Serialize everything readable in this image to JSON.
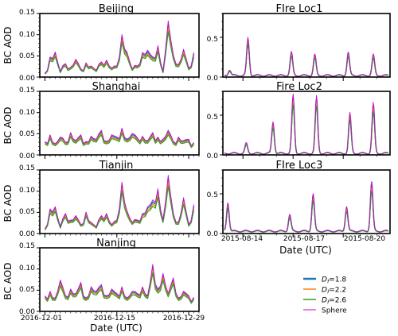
{
  "figure": {
    "left_date_labels": [
      "2016-12-01",
      "2016-12-15",
      "2016-12-29"
    ],
    "right_date_labels": [
      "2015-08-14",
      "2015-08-17",
      "2015-08-20"
    ],
    "left_xlabel": "Date (UTC)",
    "right_xlabel": "Date (UTC)",
    "ylabel": "BC AOD"
  },
  "legend": {
    "position": "bottom-right",
    "entries": [
      {
        "label_main": "D",
        "label_sub": "f",
        "label_value": "=1.8",
        "color": "#1f77b4",
        "bold": true
      },
      {
        "label_main": "D",
        "label_sub": "f",
        "label_value": "=2.2",
        "color": "#ff7f0e",
        "bold": false
      },
      {
        "label_main": "D",
        "label_sub": "f",
        "label_value": "=2.6",
        "color": "#2ca02c",
        "bold": false
      },
      {
        "label_main": "Sphere",
        "label_sub": "",
        "label_value": "",
        "color": "#d400d4",
        "bold": false
      }
    ]
  },
  "chart_data": [
    {
      "type": "line",
      "title": "Beijing",
      "ylabel": "BC AOD",
      "xlabel": "",
      "ylim": [
        0,
        0.15
      ],
      "yticks": [
        0.0,
        0.05,
        0.1,
        0.15
      ],
      "ytick_labels": [
        "0.00",
        "0.05",
        "0.10",
        "0.15"
      ],
      "xlim_days": [
        -1,
        30
      ],
      "xticks_days": [
        0,
        14,
        28
      ],
      "xtick_labels": [
        "",
        "",
        ""
      ],
      "series": [
        {
          "name": "Df=1.8",
          "color": "#1f77b4"
        },
        {
          "name": "Df=2.2",
          "color": "#ff7f0e"
        },
        {
          "name": "Df=2.6",
          "color": "#2ca02c"
        },
        {
          "name": "Sphere",
          "color": "#d400d4"
        }
      ],
      "x_days": [
        0,
        1,
        2,
        3,
        4,
        5,
        6,
        7,
        8,
        9,
        10,
        11,
        12,
        13,
        14,
        15,
        16,
        17,
        18,
        19,
        20,
        21,
        22,
        23,
        24,
        25,
        26,
        27,
        28,
        29
      ],
      "values": [
        0.008,
        0.045,
        0.056,
        0.012,
        0.03,
        0.022,
        0.04,
        0.018,
        0.032,
        0.025,
        0.015,
        0.034,
        0.038,
        0.02,
        0.025,
        0.095,
        0.055,
        0.018,
        0.025,
        0.055,
        0.06,
        0.045,
        0.07,
        0.012,
        0.125,
        0.05,
        0.028,
        0.062,
        0.02,
        0.055
      ]
    },
    {
      "type": "line",
      "title": "Shanghai",
      "ylabel": "BC AOD",
      "xlabel": "",
      "ylim": [
        0,
        0.15
      ],
      "yticks": [
        0.0,
        0.05,
        0.1,
        0.15
      ],
      "ytick_labels": [
        "0.00",
        "0.05",
        "0.10",
        "0.15"
      ],
      "xlim_days": [
        -1,
        30
      ],
      "xticks_days": [
        0,
        14,
        28
      ],
      "xtick_labels": [
        "",
        "",
        ""
      ],
      "series": [
        {
          "name": "Df=1.8",
          "color": "#1f77b4"
        },
        {
          "name": "Df=2.2",
          "color": "#ff7f0e"
        },
        {
          "name": "Df=2.6",
          "color": "#2ca02c"
        },
        {
          "name": "Sphere",
          "color": "#d400d4"
        }
      ],
      "x_days": [
        0,
        1,
        2,
        3,
        4,
        5,
        6,
        7,
        8,
        9,
        10,
        11,
        12,
        13,
        14,
        15,
        16,
        17,
        18,
        19,
        20,
        21,
        22,
        23,
        24,
        25,
        26,
        27,
        28,
        29
      ],
      "values": [
        0.03,
        0.045,
        0.025,
        0.04,
        0.028,
        0.05,
        0.032,
        0.045,
        0.03,
        0.042,
        0.035,
        0.055,
        0.03,
        0.045,
        0.04,
        0.06,
        0.035,
        0.048,
        0.038,
        0.042,
        0.032,
        0.05,
        0.04,
        0.035,
        0.055,
        0.03,
        0.04,
        0.032,
        0.035,
        0.028
      ]
    },
    {
      "type": "line",
      "title": "Tianjin",
      "ylabel": "BC AOD",
      "xlabel": "",
      "ylim": [
        0,
        0.15
      ],
      "yticks": [
        0.0,
        0.05,
        0.1,
        0.15
      ],
      "ytick_labels": [
        "0.00",
        "0.05",
        "0.10",
        "0.15"
      ],
      "xlim_days": [
        -1,
        30
      ],
      "xticks_days": [
        0,
        14,
        28
      ],
      "xtick_labels": [
        "",
        "",
        ""
      ],
      "series": [
        {
          "name": "Df=1.8",
          "color": "#1f77b4"
        },
        {
          "name": "Df=2.2",
          "color": "#ff7f0e"
        },
        {
          "name": "Df=2.6",
          "color": "#2ca02c"
        },
        {
          "name": "Sphere",
          "color": "#d400d4"
        }
      ],
      "x_days": [
        0,
        1,
        2,
        3,
        4,
        5,
        6,
        7,
        8,
        9,
        10,
        11,
        12,
        13,
        14,
        15,
        16,
        17,
        18,
        19,
        20,
        21,
        22,
        23,
        24,
        25,
        26,
        27,
        28,
        29
      ],
      "values": [
        0.01,
        0.055,
        0.06,
        0.015,
        0.045,
        0.03,
        0.04,
        0.02,
        0.048,
        0.025,
        0.015,
        0.04,
        0.045,
        0.02,
        0.03,
        0.115,
        0.05,
        0.025,
        0.03,
        0.045,
        0.06,
        0.075,
        0.1,
        0.03,
        0.13,
        0.045,
        0.025,
        0.08,
        0.02,
        0.065
      ]
    },
    {
      "type": "line",
      "title": "Nanjing",
      "ylabel": "BC AOD",
      "xlabel": "Date (UTC)",
      "ylim": [
        0,
        0.15
      ],
      "yticks": [
        0.0,
        0.05,
        0.1,
        0.15
      ],
      "ytick_labels": [
        "0.00",
        "0.05",
        "0.10",
        "0.15"
      ],
      "xlim_days": [
        -1,
        30
      ],
      "xticks_days": [
        0,
        14,
        28
      ],
      "xtick_labels": [
        "2016-12-01",
        "2016-12-15",
        "2016-12-29"
      ],
      "series": [
        {
          "name": "Df=1.8",
          "color": "#1f77b4"
        },
        {
          "name": "Df=2.2",
          "color": "#ff7f0e"
        },
        {
          "name": "Df=2.6",
          "color": "#2ca02c"
        },
        {
          "name": "Sphere",
          "color": "#d400d4"
        }
      ],
      "x_days": [
        0,
        1,
        2,
        3,
        4,
        5,
        6,
        7,
        8,
        9,
        10,
        11,
        12,
        13,
        14,
        15,
        16,
        17,
        18,
        19,
        20,
        21,
        22,
        23,
        24,
        25,
        26,
        27,
        28,
        29
      ],
      "values": [
        0.035,
        0.045,
        0.03,
        0.07,
        0.035,
        0.05,
        0.04,
        0.065,
        0.03,
        0.055,
        0.045,
        0.06,
        0.035,
        0.05,
        0.04,
        0.055,
        0.03,
        0.045,
        0.04,
        0.055,
        0.035,
        0.105,
        0.05,
        0.085,
        0.04,
        0.075,
        0.03,
        0.045,
        0.035,
        0.032
      ]
    },
    {
      "type": "line",
      "title": "FIre Loc1",
      "ylabel": "",
      "xlabel": "",
      "ylim": [
        0,
        0.8
      ],
      "yticks": [
        0.0,
        0.5
      ],
      "ytick_labels": [
        "0.0",
        "0.5"
      ],
      "xlim_days": [
        -1.2,
        8.8
      ],
      "xticks_days": [
        0,
        3,
        6
      ],
      "xtick_labels": [
        "",
        "",
        ""
      ],
      "series": [
        {
          "name": "Df=1.8",
          "color": "#1f77b4"
        },
        {
          "name": "Df=2.2",
          "color": "#ff7f0e"
        },
        {
          "name": "Df=2.6",
          "color": "#2ca02c"
        },
        {
          "name": "Sphere",
          "color": "#d400d4"
        }
      ],
      "baseline": 0.02,
      "peaks": [
        {
          "day": -0.8,
          "value": 0.07
        },
        {
          "day": 0.3,
          "value": 0.45
        },
        {
          "day": 2.9,
          "value": 0.28
        },
        {
          "day": 4.3,
          "value": 0.25
        },
        {
          "day": 6.3,
          "value": 0.28
        },
        {
          "day": 7.8,
          "value": 0.25
        }
      ]
    },
    {
      "type": "line",
      "title": "Fire Loc2",
      "ylabel": "",
      "xlabel": "",
      "ylim": [
        0,
        0.8
      ],
      "yticks": [
        0.0,
        0.5
      ],
      "ytick_labels": [
        "0.0",
        "0.5"
      ],
      "xlim_days": [
        -1.2,
        8.8
      ],
      "xticks_days": [
        0,
        3,
        6
      ],
      "xtick_labels": [
        "",
        "",
        ""
      ],
      "series": [
        {
          "name": "Df=1.8",
          "color": "#1f77b4"
        },
        {
          "name": "Df=2.2",
          "color": "#ff7f0e"
        },
        {
          "name": "Df=2.6",
          "color": "#2ca02c"
        },
        {
          "name": "Sphere",
          "color": "#d400d4"
        }
      ],
      "baseline": 0.02,
      "peaks": [
        {
          "day": 0.2,
          "value": 0.12
        },
        {
          "day": 1.8,
          "value": 0.38
        },
        {
          "day": 3.0,
          "value": 0.7
        },
        {
          "day": 4.4,
          "value": 0.68
        },
        {
          "day": 6.4,
          "value": 0.48
        },
        {
          "day": 7.8,
          "value": 0.6
        }
      ]
    },
    {
      "type": "line",
      "title": "FIre Loc3",
      "ylabel": "",
      "xlabel": "Date (UTC)",
      "ylim": [
        0,
        0.8
      ],
      "yticks": [
        0.0,
        0.5
      ],
      "ytick_labels": [
        "0.0",
        "0.5"
      ],
      "xlim_days": [
        -1.2,
        8.8
      ],
      "xticks_days": [
        0,
        3,
        6
      ],
      "xtick_labels": [
        "2015-08-14",
        "2015-08-17",
        "2015-08-20"
      ],
      "series": [
        {
          "name": "Df=1.8",
          "color": "#1f77b4"
        },
        {
          "name": "Df=2.2",
          "color": "#ff7f0e"
        },
        {
          "name": "Df=2.6",
          "color": "#2ca02c"
        },
        {
          "name": "Sphere",
          "color": "#d400d4"
        }
      ],
      "baseline": 0.03,
      "peaks": [
        {
          "day": -0.9,
          "value": 0.35
        },
        {
          "day": 2.8,
          "value": 0.2
        },
        {
          "day": 4.2,
          "value": 0.45
        },
        {
          "day": 6.2,
          "value": 0.3
        },
        {
          "day": 7.7,
          "value": 0.6
        }
      ]
    }
  ]
}
